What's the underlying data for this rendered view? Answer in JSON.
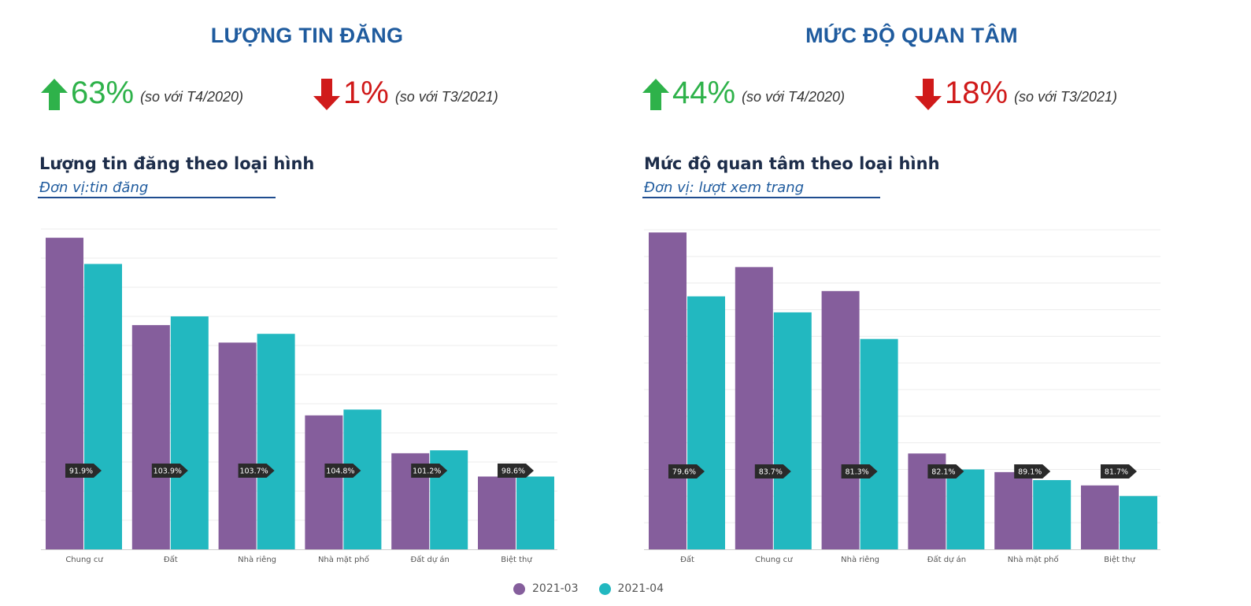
{
  "colors": {
    "series1": "#855e9c",
    "series2": "#22b8c0",
    "title": "#1f5b9e",
    "up": "#2eb24a",
    "down": "#d01a1a",
    "grid": "#ececec",
    "tag": "#2a2a2a"
  },
  "left": {
    "title": "LƯỢNG TIN ĐĂNG",
    "stat_up": {
      "icon": "arrow-up-icon",
      "value": "63%",
      "note": "(so với T4/2020)"
    },
    "stat_down": {
      "icon": "arrow-down-icon",
      "value": "1%",
      "note": "(so với T3/2021)"
    },
    "subtitle": "Lượng tin đăng theo loại hình",
    "unit": "Đơn vị:tin đăng"
  },
  "right": {
    "title": "MỨC ĐỘ QUAN TÂM",
    "stat_up": {
      "icon": "arrow-up-icon",
      "value": "44%",
      "note": "(so với T4/2020)"
    },
    "stat_down": {
      "icon": "arrow-down-icon",
      "value": "18%",
      "note": "(so với T3/2021)"
    },
    "subtitle": "Mức độ quan tâm theo loại hình",
    "unit": "Đơn vị: lượt xem trang"
  },
  "legend": {
    "series1": "2021-03",
    "series2": "2021-04"
  },
  "chart_data": [
    {
      "type": "bar",
      "title": "Lượng tin đăng theo loại hình",
      "ylabel": "Đơn vị:tin đăng",
      "categories": [
        "Chung cư",
        "Đất",
        "Nhà riêng",
        "Nhà mặt phố",
        "Đất dự án",
        "Biệt thự"
      ],
      "series": [
        {
          "name": "2021-03",
          "values": [
            107,
            77,
            71,
            46,
            33,
            25
          ]
        },
        {
          "name": "2021-04",
          "values": [
            98,
            80,
            74,
            48,
            34,
            25
          ]
        }
      ],
      "annotations": [
        "91.9%",
        "103.9%",
        "103.7%",
        "104.8%",
        "101.2%",
        "98.6%"
      ],
      "ylim": [
        0,
        110
      ],
      "grid": true,
      "legend": "bottom"
    },
    {
      "type": "bar",
      "title": "Mức độ quan tâm theo loại hình",
      "ylabel": "Đơn vị: lượt xem trang",
      "categories": [
        "Đất",
        "Chung cư",
        "Nhà riêng",
        "Đất dự án",
        "Nhà mặt phố",
        "Biệt thự"
      ],
      "series": [
        {
          "name": "2021-03",
          "values": [
            119,
            106,
            97,
            36,
            29,
            24
          ]
        },
        {
          "name": "2021-04",
          "values": [
            95,
            89,
            79,
            30,
            26,
            20
          ]
        }
      ],
      "annotations": [
        "79.6%",
        "83.7%",
        "81.3%",
        "82.1%",
        "89.1%",
        "81.7%"
      ],
      "ylim": [
        0,
        120
      ],
      "grid": true,
      "legend": "bottom"
    }
  ]
}
